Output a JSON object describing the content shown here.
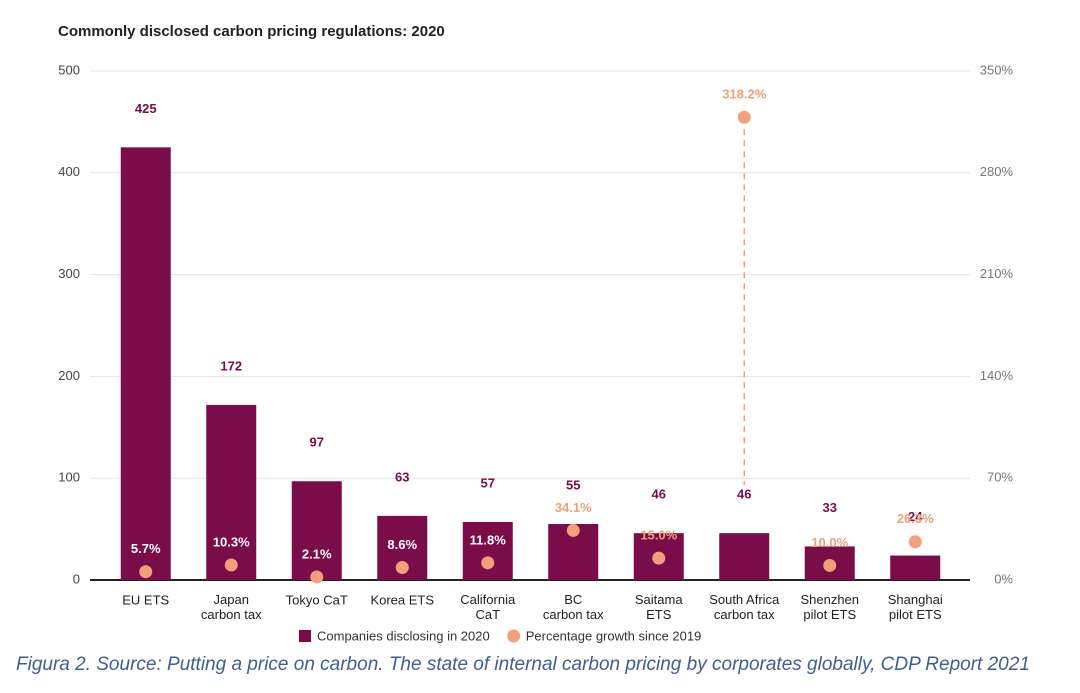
{
  "chart_data": {
    "type": "bar",
    "title": "Commonly disclosed carbon pricing regulations: 2020",
    "caption": "Figura 2. Source: Putting a price on carbon. The state of internal carbon pricing by corporates globally, CDP Report 2021",
    "categories": [
      "EU ETS",
      "Japan\ncarbon tax",
      "Tokyo CaT",
      "Korea ETS",
      "California\nCaT",
      "BC\ncarbon tax",
      "Saitama\nETS",
      "South Africa\ncarbon tax",
      "Shenzhen\npilot ETS",
      "Shanghai\npilot ETS"
    ],
    "series": [
      {
        "name": "Companies disclosing in 2020",
        "type": "bar",
        "axis": "y",
        "color": "#7b0c4a",
        "values": [
          425,
          172,
          97,
          63,
          57,
          55,
          46,
          46,
          33,
          24
        ]
      },
      {
        "name": "Percentage growth since 2019",
        "type": "scatter",
        "axis": "y2",
        "color": "#f0a07a",
        "values": [
          5.7,
          10.3,
          2.1,
          8.6,
          11.8,
          34.1,
          15.0,
          318.2,
          10.0,
          26.3
        ],
        "value_labels": [
          "5.7%",
          "10.3%",
          "2.1%",
          "8.6%",
          "11.8%",
          "34.1%",
          "15.0%",
          "318.2%",
          "10.0%",
          "26.3%"
        ]
      }
    ],
    "ylim": [
      0,
      500
    ],
    "yticks": [
      0,
      100,
      200,
      300,
      400,
      500
    ],
    "y2lim": [
      0,
      350
    ],
    "y2ticks": [
      {
        "value": 0,
        "label": "0%"
      },
      {
        "value": 70,
        "label": "70%"
      },
      {
        "value": 140,
        "label": "140%"
      },
      {
        "value": 210,
        "label": "210%"
      },
      {
        "value": 280,
        "label": "280%"
      },
      {
        "value": 350,
        "label": "350%"
      }
    ],
    "grid": true,
    "legend": "bottom"
  }
}
